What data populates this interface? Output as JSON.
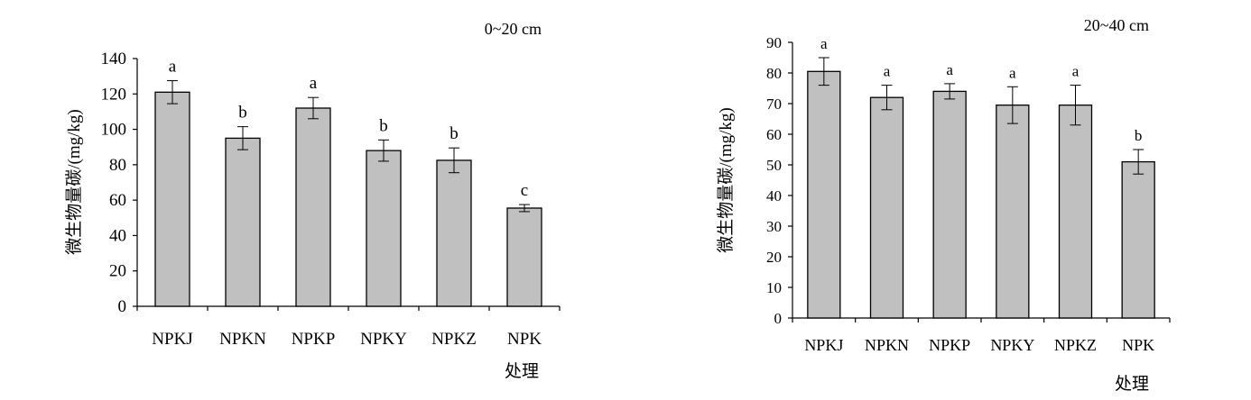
{
  "chart_data": [
    {
      "type": "bar",
      "title": "0~20 cm",
      "xlabel": "处理",
      "ylabel": "微生物量碳/(mg/kg)",
      "categories": [
        "NPKJ",
        "NPKN",
        "NPKP",
        "NPKY",
        "NPKZ",
        "NPK"
      ],
      "values": [
        121,
        95,
        112,
        88,
        82.5,
        55.5
      ],
      "errors": [
        6.5,
        6.5,
        6,
        6,
        7,
        2
      ],
      "letters": [
        "a",
        "b",
        "a",
        "b",
        "b",
        "c"
      ],
      "ylim": [
        0,
        140
      ],
      "yticks": [
        "0",
        "20",
        "40",
        "60",
        "80",
        "100",
        "120",
        "140"
      ],
      "grid": false,
      "bar_color": "#c0c0c0"
    },
    {
      "type": "bar",
      "title": "20~40 cm",
      "xlabel": "处理",
      "ylabel": "微生物量碳/(mg/kg)",
      "categories": [
        "NPKJ",
        "NPKN",
        "NPKP",
        "NPKY",
        "NPKZ",
        "NPK"
      ],
      "values": [
        80.5,
        72,
        74,
        69.5,
        69.5,
        51
      ],
      "errors": [
        4.5,
        4,
        2.5,
        6,
        6.5,
        4
      ],
      "letters": [
        "a",
        "a",
        "a",
        "a",
        "a",
        "b"
      ],
      "ylim": [
        0,
        90
      ],
      "yticks": [
        "0",
        "10",
        "20",
        "30",
        "40",
        "50",
        "60",
        "70",
        "80",
        "90"
      ],
      "grid": false,
      "bar_color": "#c0c0c0"
    }
  ]
}
